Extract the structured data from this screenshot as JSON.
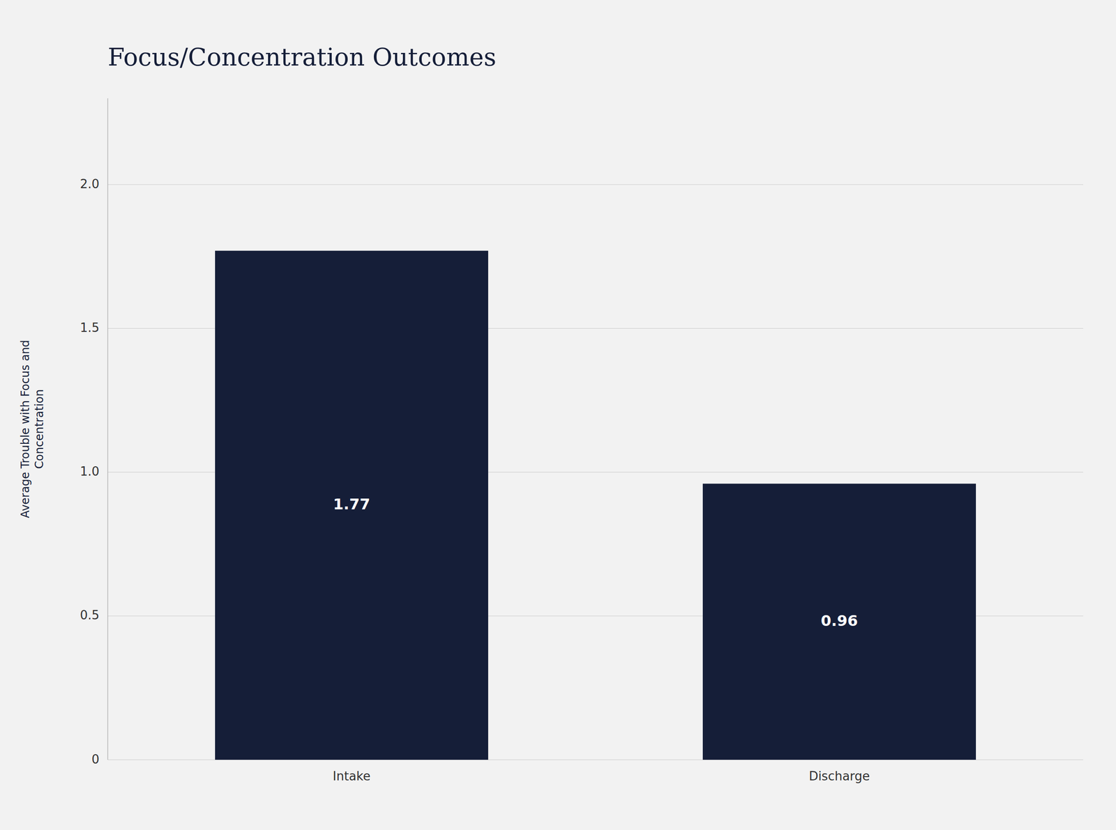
{
  "chart_data": {
    "type": "bar",
    "title": "Focus/Concentration Outcomes",
    "categories": [
      "Intake",
      "Discharge"
    ],
    "values": [
      1.77,
      0.96
    ],
    "color": "#151e38",
    "ylabel": "Average Trouble with Focus and\nConcentration",
    "ylim": [
      0,
      2.3
    ],
    "yticks": [
      0,
      0.5,
      {
        "value": 1.0,
        "label": "1.0"
      },
      1.5,
      {
        "value": 2.0,
        "label": "2.0"
      }
    ],
    "grid": true,
    "data_labels": true
  }
}
